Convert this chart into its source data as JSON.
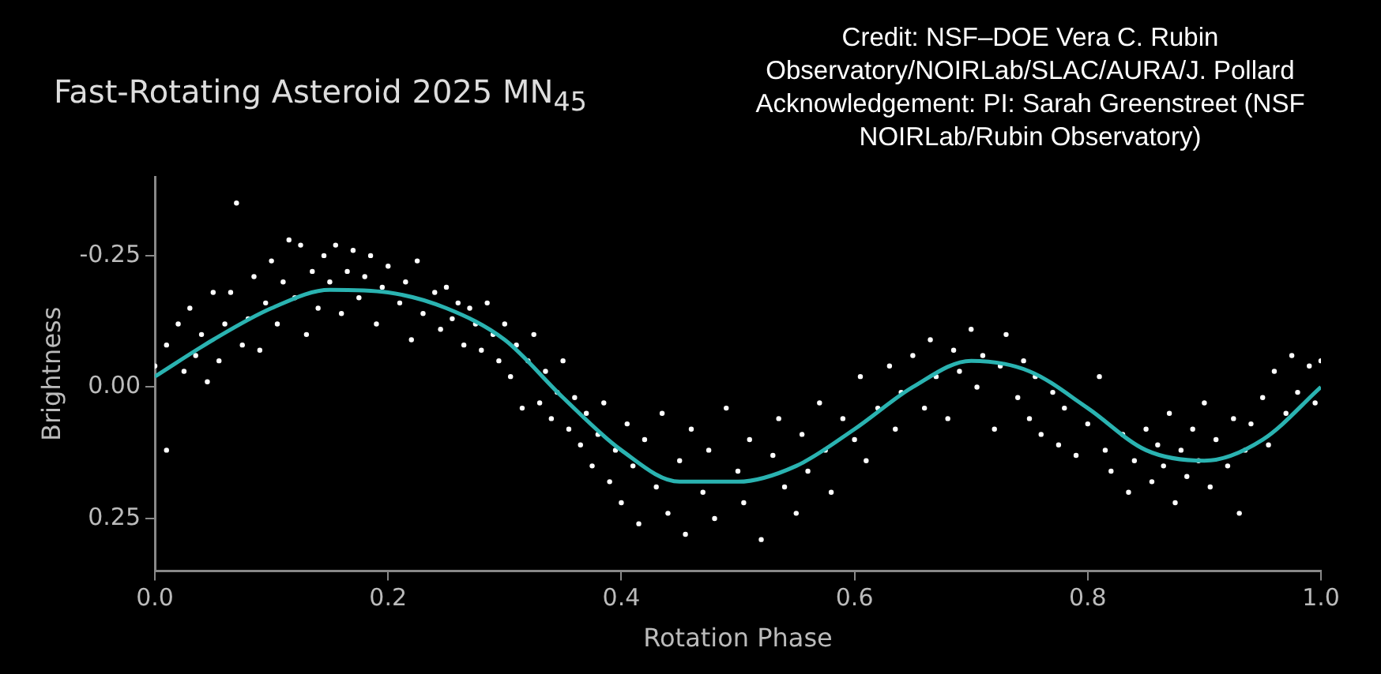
{
  "chart_data": {
    "type": "scatter",
    "title": "Fast-Rotating Asteroid 2025 MN$_{45}$",
    "xlabel": "Rotation Phase",
    "ylabel": "Brightness",
    "annotations": [
      "Credit: NSF–DOE Vera C. Rubin Observatory/NOIRLab/SLAC/AURA/J. Pollard Acknowledgement: PI: Sarah Greenstreet (NSF NOIRLab/Rubin Observatory)"
    ],
    "xlim": [
      0,
      1
    ],
    "xticks": [
      {
        "value": 0,
        "label": "0.0"
      },
      0.2,
      0.4,
      0.6,
      0.8,
      {
        "value": 1,
        "label": "1.0"
      }
    ],
    "ylim": [
      0.35,
      -0.4
    ],
    "yticks": [
      -0.25,
      {
        "value": 0,
        "label": "0.00"
      },
      0.25
    ],
    "grid": false,
    "legend": false,
    "series": [
      {
        "type": "scatter",
        "marker": "circle",
        "color": "#ffffff",
        "x": [
          0,
          0.01,
          0.01,
          0.02,
          0.025,
          0.03,
          0.035,
          0.04,
          0.045,
          0.05,
          0.055,
          0.06,
          0.065,
          0.07,
          0.075,
          0.08,
          0.085,
          0.09,
          0.095,
          0.1,
          0.105,
          0.11,
          0.115,
          0.12,
          0.125,
          0.13,
          0.135,
          0.14,
          0.145,
          0.15,
          0.155,
          0.16,
          0.165,
          0.17,
          0.175,
          0.18,
          0.185,
          0.19,
          0.195,
          0.2,
          0.21,
          0.215,
          0.22,
          0.225,
          0.23,
          0.24,
          0.245,
          0.25,
          0.255,
          0.26,
          0.265,
          0.27,
          0.275,
          0.28,
          0.285,
          0.29,
          0.295,
          0.3,
          0.305,
          0.31,
          0.315,
          0.32,
          0.325,
          0.33,
          0.335,
          0.34,
          0.345,
          0.35,
          0.355,
          0.36,
          0.365,
          0.37,
          0.375,
          0.38,
          0.385,
          0.39,
          0.395,
          0.4,
          0.405,
          0.41,
          0.415,
          0.42,
          0.43,
          0.435,
          0.44,
          0.45,
          0.455,
          0.46,
          0.47,
          0.475,
          0.48,
          0.49,
          0.5,
          0.505,
          0.51,
          0.52,
          0.53,
          0.535,
          0.54,
          0.55,
          0.555,
          0.56,
          0.57,
          0.575,
          0.58,
          0.59,
          0.6,
          0.605,
          0.61,
          0.62,
          0.63,
          0.635,
          0.64,
          0.65,
          0.66,
          0.665,
          0.67,
          0.68,
          0.685,
          0.69,
          0.7,
          0.705,
          0.71,
          0.72,
          0.725,
          0.73,
          0.74,
          0.745,
          0.75,
          0.755,
          0.76,
          0.77,
          0.775,
          0.78,
          0.79,
          0.8,
          0.81,
          0.815,
          0.82,
          0.83,
          0.835,
          0.84,
          0.85,
          0.855,
          0.86,
          0.865,
          0.87,
          0.875,
          0.88,
          0.885,
          0.89,
          0.895,
          0.9,
          0.905,
          0.91,
          0.92,
          0.925,
          0.93,
          0.935,
          0.94,
          0.95,
          0.955,
          0.96,
          0.97,
          0.975,
          0.98,
          0.99,
          0.995,
          1
        ],
        "values": [
          -0.04,
          0.12,
          -0.08,
          -0.12,
          -0.03,
          -0.15,
          -0.06,
          -0.1,
          -0.01,
          -0.18,
          -0.05,
          -0.12,
          -0.18,
          -0.35,
          -0.08,
          -0.13,
          -0.21,
          -0.07,
          -0.16,
          -0.24,
          -0.12,
          -0.2,
          -0.28,
          -0.17,
          -0.27,
          -0.1,
          -0.22,
          -0.15,
          -0.25,
          -0.2,
          -0.27,
          -0.14,
          -0.22,
          -0.26,
          -0.17,
          -0.21,
          -0.25,
          -0.12,
          -0.19,
          -0.23,
          -0.16,
          -0.2,
          -0.09,
          -0.24,
          -0.14,
          -0.18,
          -0.11,
          -0.19,
          -0.13,
          -0.16,
          -0.08,
          -0.15,
          -0.12,
          -0.07,
          -0.16,
          -0.1,
          -0.05,
          -0.12,
          -0.02,
          -0.08,
          0.04,
          -0.05,
          -0.1,
          0.03,
          -0.03,
          0.06,
          0.01,
          -0.05,
          0.08,
          0.02,
          0.11,
          0.05,
          0.15,
          0.09,
          0.03,
          0.18,
          0.12,
          0.22,
          0.07,
          0.15,
          0.26,
          0.1,
          0.19,
          0.05,
          0.24,
          0.14,
          0.28,
          0.08,
          0.2,
          0.12,
          0.25,
          0.04,
          0.16,
          0.22,
          0.1,
          0.29,
          0.13,
          0.06,
          0.19,
          0.24,
          0.09,
          0.16,
          0.03,
          0.12,
          0.2,
          0.06,
          0.1,
          -0.02,
          0.14,
          0.04,
          -0.04,
          0.08,
          0.01,
          -0.06,
          0.04,
          -0.09,
          -0.02,
          0.06,
          -0.07,
          -0.03,
          -0.11,
          0,
          -0.06,
          0.08,
          -0.04,
          -0.1,
          0.02,
          -0.05,
          0.06,
          -0.02,
          0.09,
          0.01,
          0.11,
          0.04,
          0.13,
          0.07,
          -0.02,
          0.12,
          0.16,
          0.09,
          0.2,
          0.14,
          0.08,
          0.18,
          0.11,
          0.15,
          0.05,
          0.22,
          0.12,
          0.17,
          0.08,
          0.14,
          0.03,
          0.19,
          0.1,
          0.15,
          0.06,
          0.24,
          0.12,
          0.07,
          0.02,
          0.11,
          -0.03,
          0.05,
          -0.06,
          0.01,
          -0.04,
          0.03,
          -0.05
        ]
      },
      {
        "type": "line",
        "marker": "none",
        "color": "#2ab3b1",
        "x": [
          0,
          0.05,
          0.1,
          0.15,
          0.2,
          0.25,
          0.3,
          0.35,
          0.4,
          0.45,
          0.5,
          0.55,
          0.6,
          0.65,
          0.7,
          0.75,
          0.8,
          0.85,
          0.9,
          0.95,
          1
        ],
        "values": [
          -0.02,
          -0.09,
          -0.15,
          -0.185,
          -0.18,
          -0.15,
          -0.09,
          0.02,
          0.12,
          0.18,
          0.18,
          0.15,
          0.08,
          0,
          -0.05,
          -0.03,
          0.04,
          0.12,
          0.14,
          0.1,
          0
        ]
      }
    ]
  }
}
